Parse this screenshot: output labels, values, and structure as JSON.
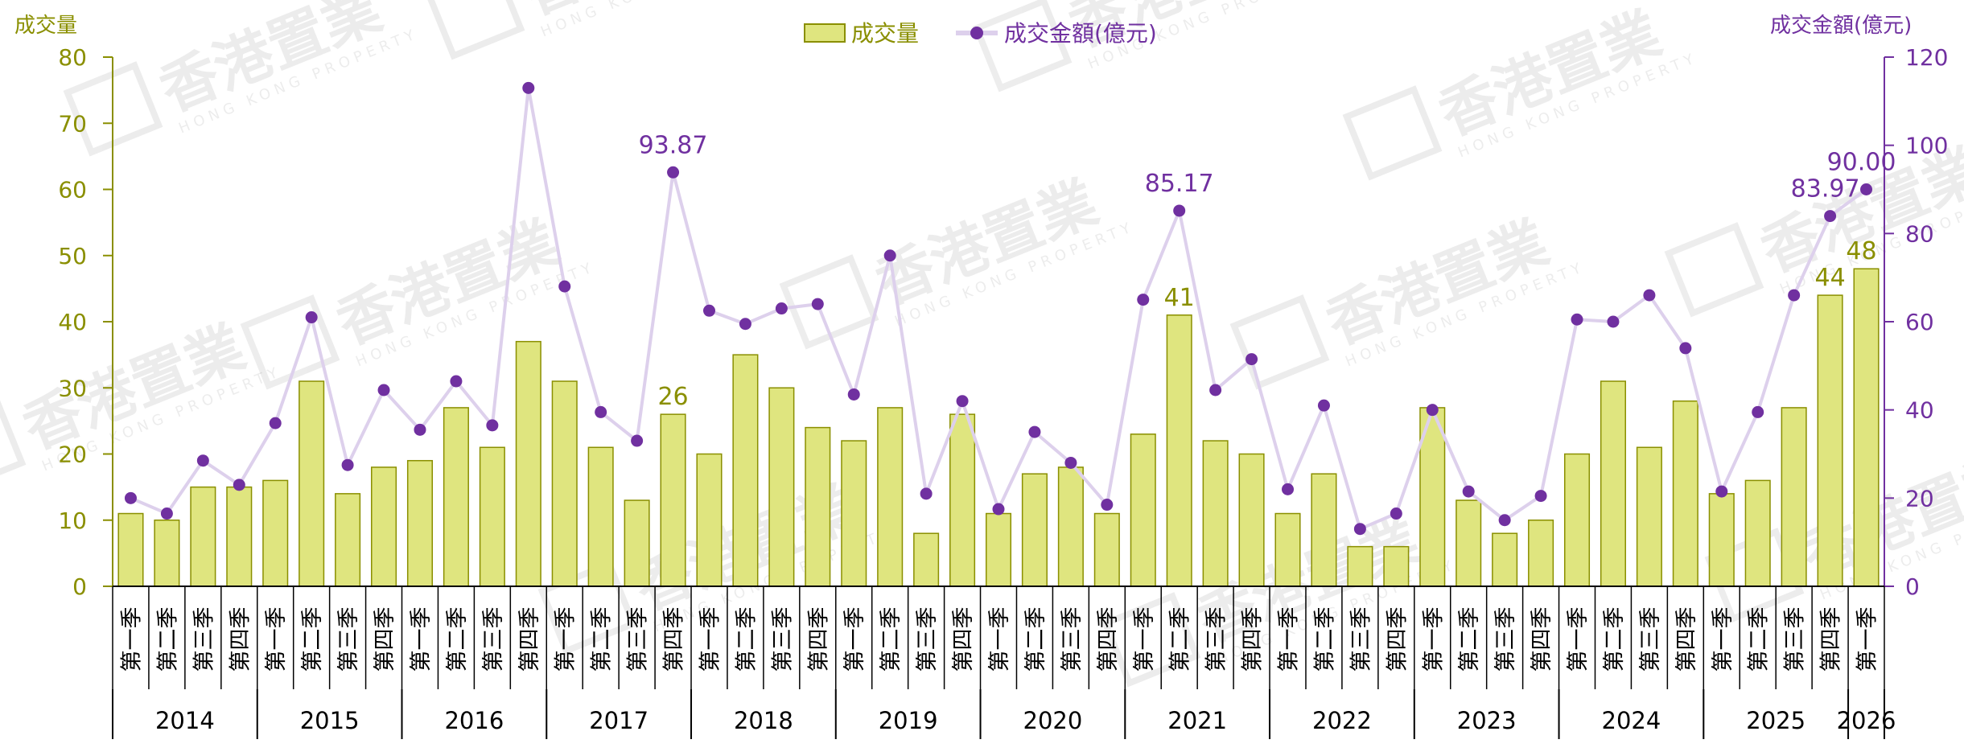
{
  "chart_data": {
    "type": "bar",
    "left_axis_title": "成交量",
    "right_axis_title": "成交金額(億元)",
    "yl_ticks": [
      "0",
      "10",
      "20",
      "30",
      "40",
      "50",
      "60",
      "70",
      "80"
    ],
    "yr_ticks": [
      "0",
      "20",
      "40",
      "60",
      "80",
      "100",
      "120"
    ],
    "yl_range": [
      0,
      80
    ],
    "yr_range": [
      0,
      120
    ],
    "legend": {
      "bar": "成交量",
      "line": "成交金額(億元)"
    },
    "categories": [
      "第一季",
      "第二季",
      "第三季",
      "第四季",
      "第一季",
      "第二季",
      "第三季",
      "第四季",
      "第一季",
      "第二季",
      "第三季",
      "第四季",
      "第一季",
      "第二季",
      "第三季",
      "第四季",
      "第一季",
      "第二季",
      "第三季",
      "第四季",
      "第一季",
      "第二季",
      "第三季",
      "第四季",
      "第一季",
      "第二季",
      "第三季",
      "第四季",
      "第一季",
      "第二季",
      "第三季",
      "第四季",
      "第一季",
      "第二季",
      "第三季",
      "第四季",
      "第一季",
      "第二季",
      "第三季",
      "第四季",
      "第一季",
      "第二季",
      "第三季",
      "第四季",
      "第一季",
      "第二季",
      "第三季",
      "第四季",
      "第一季"
    ],
    "years": [
      {
        "label": "2014",
        "count": 4
      },
      {
        "label": "2015",
        "count": 4
      },
      {
        "label": "2016",
        "count": 4
      },
      {
        "label": "2017",
        "count": 4
      },
      {
        "label": "2018",
        "count": 4
      },
      {
        "label": "2019",
        "count": 4
      },
      {
        "label": "2020",
        "count": 4
      },
      {
        "label": "2021",
        "count": 4
      },
      {
        "label": "2022",
        "count": 4
      },
      {
        "label": "2023",
        "count": 4
      },
      {
        "label": "2024",
        "count": 4
      },
      {
        "label": "2025",
        "count": 4
      },
      {
        "label": "2026",
        "count": 1
      }
    ],
    "series": [
      {
        "name": "成交量",
        "type": "bar",
        "axis": "left",
        "color": "#dfe57f",
        "stroke": "#8a8f00",
        "values": [
          11,
          10,
          15,
          15,
          16,
          31,
          14,
          18,
          19,
          27,
          21,
          37,
          31,
          21,
          13,
          26,
          20,
          35,
          30,
          24,
          22,
          27,
          8,
          26,
          11,
          17,
          18,
          11,
          23,
          41,
          22,
          20,
          11,
          17,
          6,
          6,
          27,
          13,
          8,
          10,
          20,
          31,
          21,
          28,
          14,
          16,
          27,
          44,
          48
        ],
        "labels": [
          {
            "index": 15,
            "text": "26"
          },
          {
            "index": 29,
            "text": "41"
          },
          {
            "index": 47,
            "text": "44"
          },
          {
            "index": 48,
            "text": "48"
          }
        ]
      },
      {
        "name": "成交金額(億元)",
        "type": "line",
        "axis": "right",
        "color": "#7030a0",
        "line_color": "#ddd0ec",
        "values": [
          20,
          16.5,
          28.5,
          23,
          37,
          61,
          27.5,
          44.5,
          35.5,
          46.5,
          36.5,
          113,
          68,
          39.5,
          33,
          93.87,
          62.5,
          59.5,
          63,
          64,
          43.5,
          75,
          21,
          42,
          17.5,
          35,
          28,
          18.5,
          65,
          85.17,
          44.5,
          51.5,
          22,
          41,
          13,
          16.5,
          40,
          21.5,
          15,
          20.5,
          60.5,
          60,
          66,
          54,
          21.5,
          39.5,
          66,
          83.97,
          90.0
        ],
        "labels": [
          {
            "index": 15,
            "text": "93.87"
          },
          {
            "index": 29,
            "text": "85.17"
          },
          {
            "index": 47,
            "text": "83.97"
          },
          {
            "index": 48,
            "text": "90.00"
          }
        ]
      }
    ],
    "colors": {
      "left_axis": "#8a8f00",
      "right_axis": "#7030a0",
      "bar_fill": "#dfe57f",
      "bar_stroke": "#8a8f00",
      "line": "#ddd0ec",
      "marker": "#7030a0"
    }
  },
  "watermark": {
    "text": "香港置業",
    "subtext": "HONG KONG PROPERTY"
  }
}
